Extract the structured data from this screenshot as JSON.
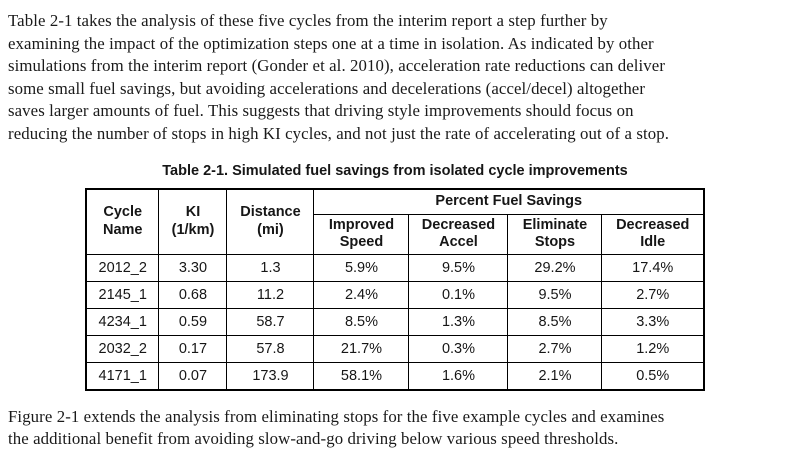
{
  "document": {
    "intro_lines": [
      "Table 2-1 takes the analysis of these five cycles from the interim report a step further by",
      "examining the impact of the optimization steps one at a time in isolation. As indicated by other",
      "simulations from the interim report (Gonder et al. 2010), acceleration rate reductions can deliver",
      "some small fuel savings, but avoiding accelerations and decelerations (accel/decel) altogether",
      "saves larger amounts of fuel. This suggests that driving style improvements should focus on",
      "reducing the number of stops in high KI cycles, and not just the rate of accelerating out of a stop."
    ],
    "closing_lines": [
      "Figure 2-1 extends the analysis from eliminating stops for the five example cycles and examines",
      "the additional benefit from avoiding slow-and-go driving below various speed thresholds."
    ]
  },
  "table": {
    "title": "Table 2-1. Simulated fuel savings from isolated cycle improvements",
    "headers": {
      "cycle_name": "Cycle\nName",
      "ki": "KI\n(1/km)",
      "distance": "Distance\n(mi)",
      "percent_fuel_savings": "Percent Fuel Savings",
      "improved_speed": "Improved\nSpeed",
      "decreased_accel": "Decreased\nAccel",
      "eliminate_stops": "Eliminate\nStops",
      "decreased_idle": "Decreased\nIdle"
    },
    "rows": [
      {
        "cycle": "2012_2",
        "ki": "3.30",
        "distance": "1.3",
        "improved_speed": "5.9%",
        "decreased_accel": "9.5%",
        "eliminate_stops": "29.2%",
        "decreased_idle": "17.4%"
      },
      {
        "cycle": "2145_1",
        "ki": "0.68",
        "distance": "11.2",
        "improved_speed": "2.4%",
        "decreased_accel": "0.1%",
        "eliminate_stops": "9.5%",
        "decreased_idle": "2.7%"
      },
      {
        "cycle": "4234_1",
        "ki": "0.59",
        "distance": "58.7",
        "improved_speed": "8.5%",
        "decreased_accel": "1.3%",
        "eliminate_stops": "8.5%",
        "decreased_idle": "3.3%"
      },
      {
        "cycle": "2032_2",
        "ki": "0.17",
        "distance": "57.8",
        "improved_speed": "21.7%",
        "decreased_accel": "0.3%",
        "eliminate_stops": "2.7%",
        "decreased_idle": "1.2%"
      },
      {
        "cycle": "4171_1",
        "ki": "0.07",
        "distance": "173.9",
        "improved_speed": "58.1%",
        "decreased_accel": "1.6%",
        "eliminate_stops": "2.1%",
        "decreased_idle": "0.5%"
      }
    ],
    "colors": {
      "text": "#1a1a1a",
      "border": "#000000",
      "background": "#ffffff"
    }
  }
}
